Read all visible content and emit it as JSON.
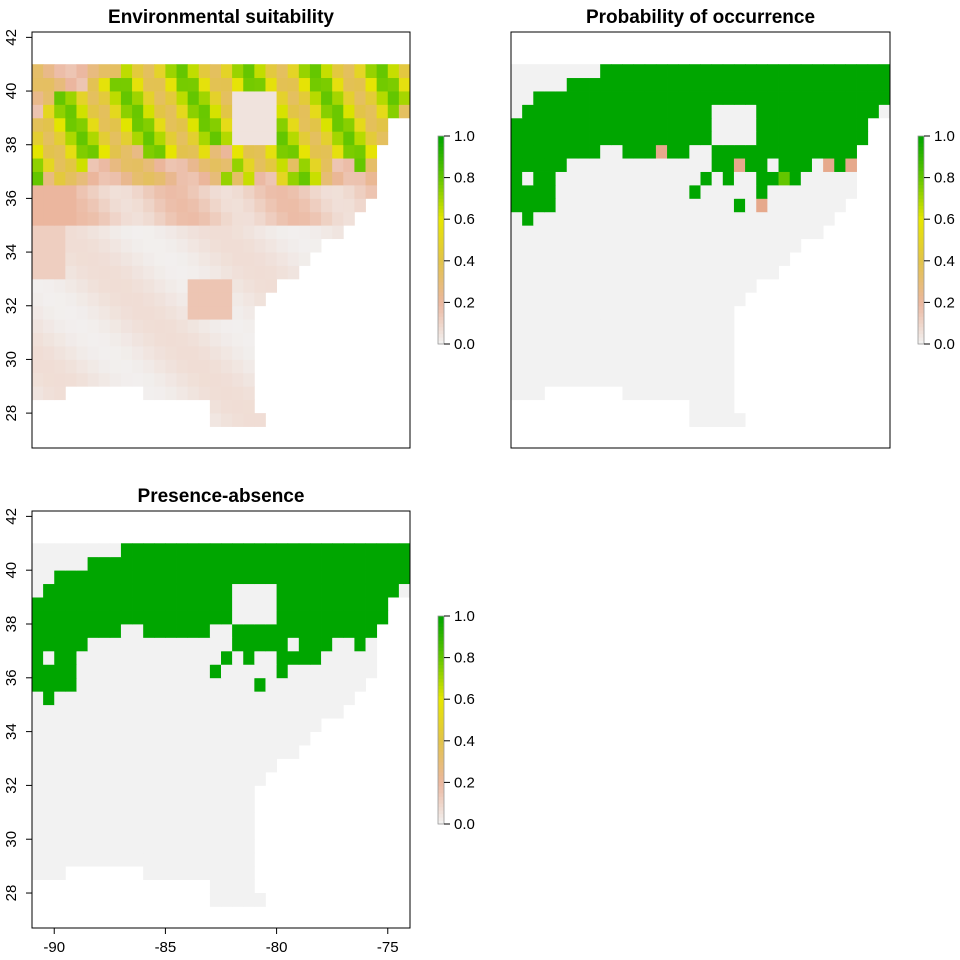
{
  "chart_data": [
    {
      "type": "heatmap",
      "title": "Environmental suitability",
      "xlim": [
        -91,
        -74
      ],
      "ylim": [
        26.7,
        42.2
      ],
      "yticks": [
        "28",
        "30",
        "32",
        "34",
        "36",
        "38",
        "40",
        "42"
      ],
      "xticks": [],
      "legend": {
        "ticks": [
          "0.0",
          "0.2",
          "0.4",
          "0.6",
          "0.8",
          "1.0"
        ],
        "placement": "right"
      },
      "grid": false,
      "cell_size_deg": 0.5,
      "raster": {
        "top_lat": 41,
        "left_lon": -91,
        "row_masks": [
          "..................................",
          "..................................",
          "##################################",
          "##################################",
          "##################################",
          "##################################",
          "##################################",
          "##################################",
          "###############################...",
          "################################..",
          "###############################...",
          "###############################...",
          "###############################...",
          "###############################...",
          "##############################....",
          "##############################....",
          "#############################.....",
          "############################......",
          "###########################.......",
          "##########################........",
          "#########################.........",
          "########################..........",
          "#######################...........",
          "#######################...........",
          "#######################...........",
          "#######################...........",
          "#######################...........",
          "#######################...........",
          "#######################...........",
          "#######################...........",
          "#######################...........",
          "#######################...........",
          "#######################...........",
          "#######################...........",
          "######################............",
          "######################............",
          "######################............",
          "######################............",
          "######################............",
          "######################............",
          "######################............",
          "######################............"
        ]
      },
      "values_description_omitted": false,
      "high_region_box": {
        "lat": [
          36.5,
          41
        ],
        "lon": [
          -91,
          -74
        ]
      }
    },
    {
      "type": "heatmap",
      "title": "Probability of occurrence",
      "xlim": [
        -91,
        -74
      ],
      "ylim": [
        26.7,
        42.2
      ],
      "legend": {
        "ticks": [
          "0.0",
          "0.2",
          "0.4",
          "0.6",
          "0.8",
          "1.0"
        ],
        "placement": "right"
      },
      "grid": false
    },
    {
      "type": "heatmap",
      "title": "Presence-absence",
      "xlim": [
        -91,
        -74
      ],
      "ylim": [
        26.7,
        42.2
      ],
      "xticks": [
        "-90",
        "-85",
        "-80",
        "-75"
      ],
      "yticks": [
        "28",
        "30",
        "32",
        "34",
        "36",
        "38",
        "40",
        "42"
      ],
      "legend": {
        "ticks": [
          "0.0",
          "0.2",
          "0.4",
          "0.6",
          "0.8",
          "1.0"
        ],
        "placement": "right"
      },
      "grid": false
    }
  ],
  "colors": {
    "background_cell": "#f2f2f2",
    "presence": "#00a600",
    "low_suitability": "#e6a98c",
    "mid_suitability": "#e6e600",
    "high_suitability": "#4cbf00"
  }
}
